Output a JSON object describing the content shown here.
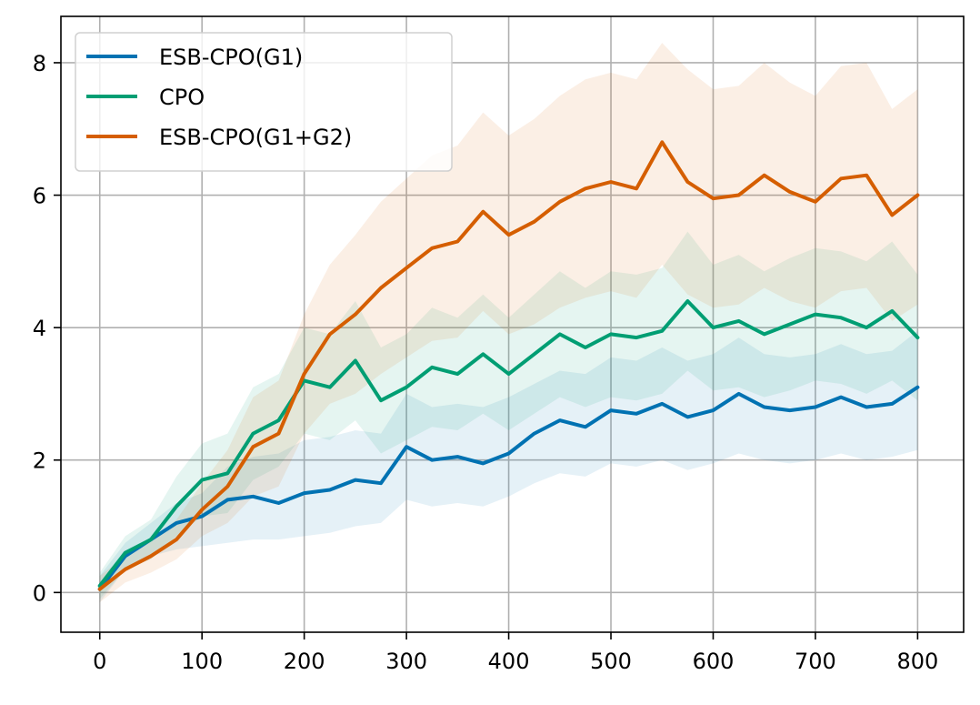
{
  "chart_data": {
    "type": "line",
    "title": "",
    "xlabel": "",
    "ylabel": "",
    "xlim": [
      -38,
      845
    ],
    "ylim": [
      -0.6,
      8.7
    ],
    "xticks": [
      0,
      100,
      200,
      300,
      400,
      500,
      600,
      700,
      800
    ],
    "yticks": [
      0,
      2,
      4,
      6,
      8
    ],
    "grid": true,
    "legend_position": "top-left",
    "x": [
      0,
      25,
      50,
      75,
      100,
      125,
      150,
      175,
      200,
      225,
      250,
      275,
      300,
      325,
      350,
      375,
      400,
      425,
      450,
      475,
      500,
      525,
      550,
      575,
      600,
      625,
      650,
      675,
      700,
      725,
      750,
      775,
      800
    ],
    "series": [
      {
        "name": "ESB-CPO(G1)",
        "color": "#0072b2",
        "values": [
          0.05,
          0.55,
          0.8,
          1.05,
          1.15,
          1.4,
          1.45,
          1.35,
          1.5,
          1.55,
          1.7,
          1.65,
          2.2,
          2.0,
          2.05,
          1.95,
          2.1,
          2.4,
          2.6,
          2.5,
          2.75,
          2.7,
          2.85,
          2.65,
          2.75,
          3.0,
          2.8,
          2.75,
          2.8,
          2.95,
          2.8,
          2.85,
          3.1
        ],
        "band": {
          "lower": [
            -0.15,
            0.35,
            0.55,
            0.65,
            0.7,
            0.75,
            0.8,
            0.8,
            0.85,
            0.9,
            1.0,
            1.05,
            1.4,
            1.3,
            1.35,
            1.3,
            1.45,
            1.65,
            1.8,
            1.75,
            1.95,
            1.9,
            2.0,
            1.85,
            1.95,
            2.1,
            2.0,
            1.95,
            2.0,
            2.1,
            2.0,
            2.05,
            2.15
          ],
          "upper": [
            0.25,
            0.75,
            1.05,
            1.35,
            1.5,
            1.9,
            2.05,
            2.1,
            2.3,
            2.35,
            2.45,
            2.4,
            3.0,
            2.8,
            2.85,
            2.8,
            2.95,
            3.15,
            3.35,
            3.3,
            3.55,
            3.5,
            3.7,
            3.5,
            3.6,
            3.85,
            3.6,
            3.55,
            3.6,
            3.75,
            3.6,
            3.65,
            3.95
          ]
        }
      },
      {
        "name": "CPO",
        "color": "#009e73",
        "values": [
          0.1,
          0.6,
          0.8,
          1.3,
          1.7,
          1.8,
          2.4,
          2.6,
          3.2,
          3.1,
          3.5,
          2.9,
          3.1,
          3.4,
          3.3,
          3.6,
          3.3,
          3.6,
          3.9,
          3.7,
          3.9,
          3.85,
          3.95,
          4.4,
          4.0,
          4.1,
          3.9,
          4.05,
          4.2,
          4.15,
          4.0,
          4.25,
          3.85
        ],
        "band": {
          "lower": [
            -0.1,
            0.35,
            0.5,
            0.85,
            1.15,
            1.2,
            1.7,
            1.9,
            2.4,
            2.3,
            2.6,
            2.1,
            2.3,
            2.5,
            2.45,
            2.7,
            2.45,
            2.7,
            2.95,
            2.8,
            2.95,
            2.9,
            3.0,
            3.35,
            3.05,
            3.1,
            2.95,
            3.05,
            3.2,
            3.15,
            3.0,
            3.2,
            2.9
          ],
          "upper": [
            0.3,
            0.85,
            1.1,
            1.75,
            2.25,
            2.4,
            3.1,
            3.3,
            4.0,
            3.9,
            4.4,
            3.7,
            3.9,
            4.3,
            4.15,
            4.5,
            4.15,
            4.5,
            4.85,
            4.6,
            4.85,
            4.8,
            4.9,
            5.45,
            4.95,
            5.1,
            4.85,
            5.05,
            5.2,
            5.15,
            5.0,
            5.3,
            4.8
          ]
        }
      },
      {
        "name": "ESB-CPO(G1+G2)",
        "color": "#d55e00",
        "values": [
          0.05,
          0.35,
          0.55,
          0.8,
          1.25,
          1.6,
          2.2,
          2.4,
          3.3,
          3.9,
          4.2,
          4.6,
          4.9,
          5.2,
          5.3,
          5.75,
          5.4,
          5.6,
          5.9,
          6.1,
          6.2,
          6.1,
          6.8,
          6.2,
          5.95,
          6.0,
          6.3,
          6.05,
          5.9,
          6.25,
          6.3,
          5.7,
          6.0
        ],
        "band": {
          "lower": [
            -0.15,
            0.15,
            0.3,
            0.5,
            0.85,
            1.05,
            1.45,
            1.6,
            2.4,
            2.85,
            3.0,
            3.3,
            3.55,
            3.8,
            3.85,
            4.25,
            3.9,
            4.05,
            4.3,
            4.45,
            4.55,
            4.45,
            4.95,
            4.5,
            4.3,
            4.35,
            4.6,
            4.4,
            4.3,
            4.55,
            4.6,
            4.1,
            4.35
          ],
          "upper": [
            0.25,
            0.55,
            0.8,
            1.1,
            1.65,
            2.15,
            2.95,
            3.2,
            4.2,
            4.95,
            5.4,
            5.9,
            6.25,
            6.6,
            6.75,
            7.25,
            6.9,
            7.15,
            7.5,
            7.75,
            7.85,
            7.75,
            8.3,
            7.9,
            7.6,
            7.65,
            8.0,
            7.7,
            7.5,
            7.95,
            8.0,
            7.3,
            7.6
          ]
        }
      }
    ]
  }
}
